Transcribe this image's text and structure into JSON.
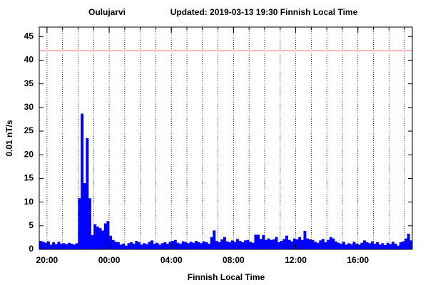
{
  "chart_data": {
    "type": "bar",
    "title": "Oulujarvi",
    "subtitle": "Updated: 2019-03-13 19:30 Finnish Local Time",
    "x_label": "Finnish Local Time",
    "y_label": "0.01 nT/s",
    "color": "#0000ff",
    "reference_line": {
      "value": 42,
      "color": "#ff9999"
    },
    "xlim": [
      1170,
      2610
    ],
    "ylim": [
      0,
      47
    ],
    "xticks": [
      {
        "value": 1200,
        "label": "20:00"
      },
      {
        "value": 1440,
        "label": "00:00"
      },
      {
        "value": 1680,
        "label": "04:00"
      },
      {
        "value": 1920,
        "label": "08:00"
      },
      {
        "value": 2160,
        "label": "12:00"
      },
      {
        "value": 2400,
        "label": "16:00"
      }
    ],
    "xminorticks": [
      1200,
      1260,
      1320,
      1380,
      1440,
      1500,
      1560,
      1620,
      1680,
      1740,
      1800,
      1860,
      1920,
      1980,
      2040,
      2100,
      2160,
      2220,
      2280,
      2340,
      2400,
      2460,
      2520,
      2580
    ],
    "yticks": [
      0,
      5,
      10,
      15,
      20,
      25,
      30,
      35,
      40,
      45
    ],
    "grid": true,
    "x": [
      1170,
      1180,
      1190,
      1200,
      1210,
      1220,
      1230,
      1240,
      1250,
      1260,
      1270,
      1280,
      1290,
      1300,
      1310,
      1320,
      1330,
      1340,
      1350,
      1360,
      1370,
      1380,
      1390,
      1400,
      1410,
      1420,
      1430,
      1440,
      1450,
      1460,
      1470,
      1480,
      1490,
      1500,
      1510,
      1520,
      1530,
      1540,
      1550,
      1560,
      1570,
      1580,
      1590,
      1600,
      1610,
      1620,
      1630,
      1640,
      1650,
      1660,
      1670,
      1680,
      1690,
      1700,
      1710,
      1720,
      1730,
      1740,
      1750,
      1760,
      1770,
      1780,
      1790,
      1800,
      1810,
      1820,
      1830,
      1840,
      1850,
      1860,
      1870,
      1880,
      1890,
      1900,
      1910,
      1920,
      1930,
      1940,
      1950,
      1960,
      1970,
      1980,
      1990,
      2000,
      2010,
      2020,
      2030,
      2040,
      2050,
      2060,
      2070,
      2080,
      2090,
      2100,
      2110,
      2120,
      2130,
      2140,
      2150,
      2160,
      2170,
      2180,
      2190,
      2200,
      2210,
      2220,
      2230,
      2240,
      2250,
      2260,
      2270,
      2280,
      2290,
      2300,
      2310,
      2320,
      2330,
      2340,
      2350,
      2360,
      2370,
      2380,
      2390,
      2400,
      2410,
      2420,
      2430,
      2440,
      2450,
      2460,
      2470,
      2480,
      2490,
      2500,
      2510,
      2520,
      2530,
      2540,
      2550,
      2560,
      2570,
      2580,
      2590,
      2600
    ],
    "values": [
      1.8,
      1.6,
      1.4,
      1.7,
      1.0,
      1.5,
      1.1,
      1.6,
      1.2,
      1.3,
      1.1,
      1.4,
      1.2,
      1.0,
      1.3,
      10.8,
      28.7,
      14.0,
      23.5,
      10.8,
      3.0,
      5.3,
      4.8,
      4.5,
      4.0,
      5.5,
      6.0,
      2.9,
      2.0,
      1.6,
      1.5,
      1.0,
      1.2,
      0.8,
      1.3,
      1.5,
      1.2,
      1.8,
      1.5,
      1.0,
      1.3,
      1.1,
      1.6,
      1.9,
      1.2,
      1.4,
      1.0,
      1.3,
      1.5,
      1.2,
      1.6,
      1.8,
      2.0,
      1.4,
      1.2,
      1.7,
      1.5,
      1.3,
      1.6,
      1.4,
      1.8,
      1.5,
      1.3,
      1.7,
      1.5,
      1.2,
      2.6,
      4.0,
      1.8,
      1.5,
      2.1,
      2.6,
      1.7,
      1.5,
      1.9,
      1.6,
      2.2,
      1.8,
      1.5,
      1.9,
      2.0,
      1.6,
      1.4,
      3.1,
      3.1,
      2.2,
      3.0,
      2.0,
      2.3,
      2.0,
      2.1,
      2.6,
      1.5,
      1.8,
      2.2,
      2.9,
      2.0,
      1.7,
      2.3,
      2.1,
      2.6,
      2.0,
      3.9,
      2.3,
      2.1,
      2.0,
      1.6,
      1.4,
      1.9,
      2.2,
      1.5,
      2.0,
      2.6,
      2.3,
      1.7,
      1.4,
      1.2,
      1.6,
      1.0,
      1.3,
      1.1,
      1.6,
      1.2,
      1.0,
      1.4,
      1.9,
      1.5,
      1.3,
      1.7,
      1.2,
      1.5,
      1.0,
      1.3,
      0.9,
      1.4,
      1.1,
      1.6,
      1.2,
      0.8,
      1.5,
      1.7,
      2.3,
      3.3,
      1.9
    ]
  }
}
